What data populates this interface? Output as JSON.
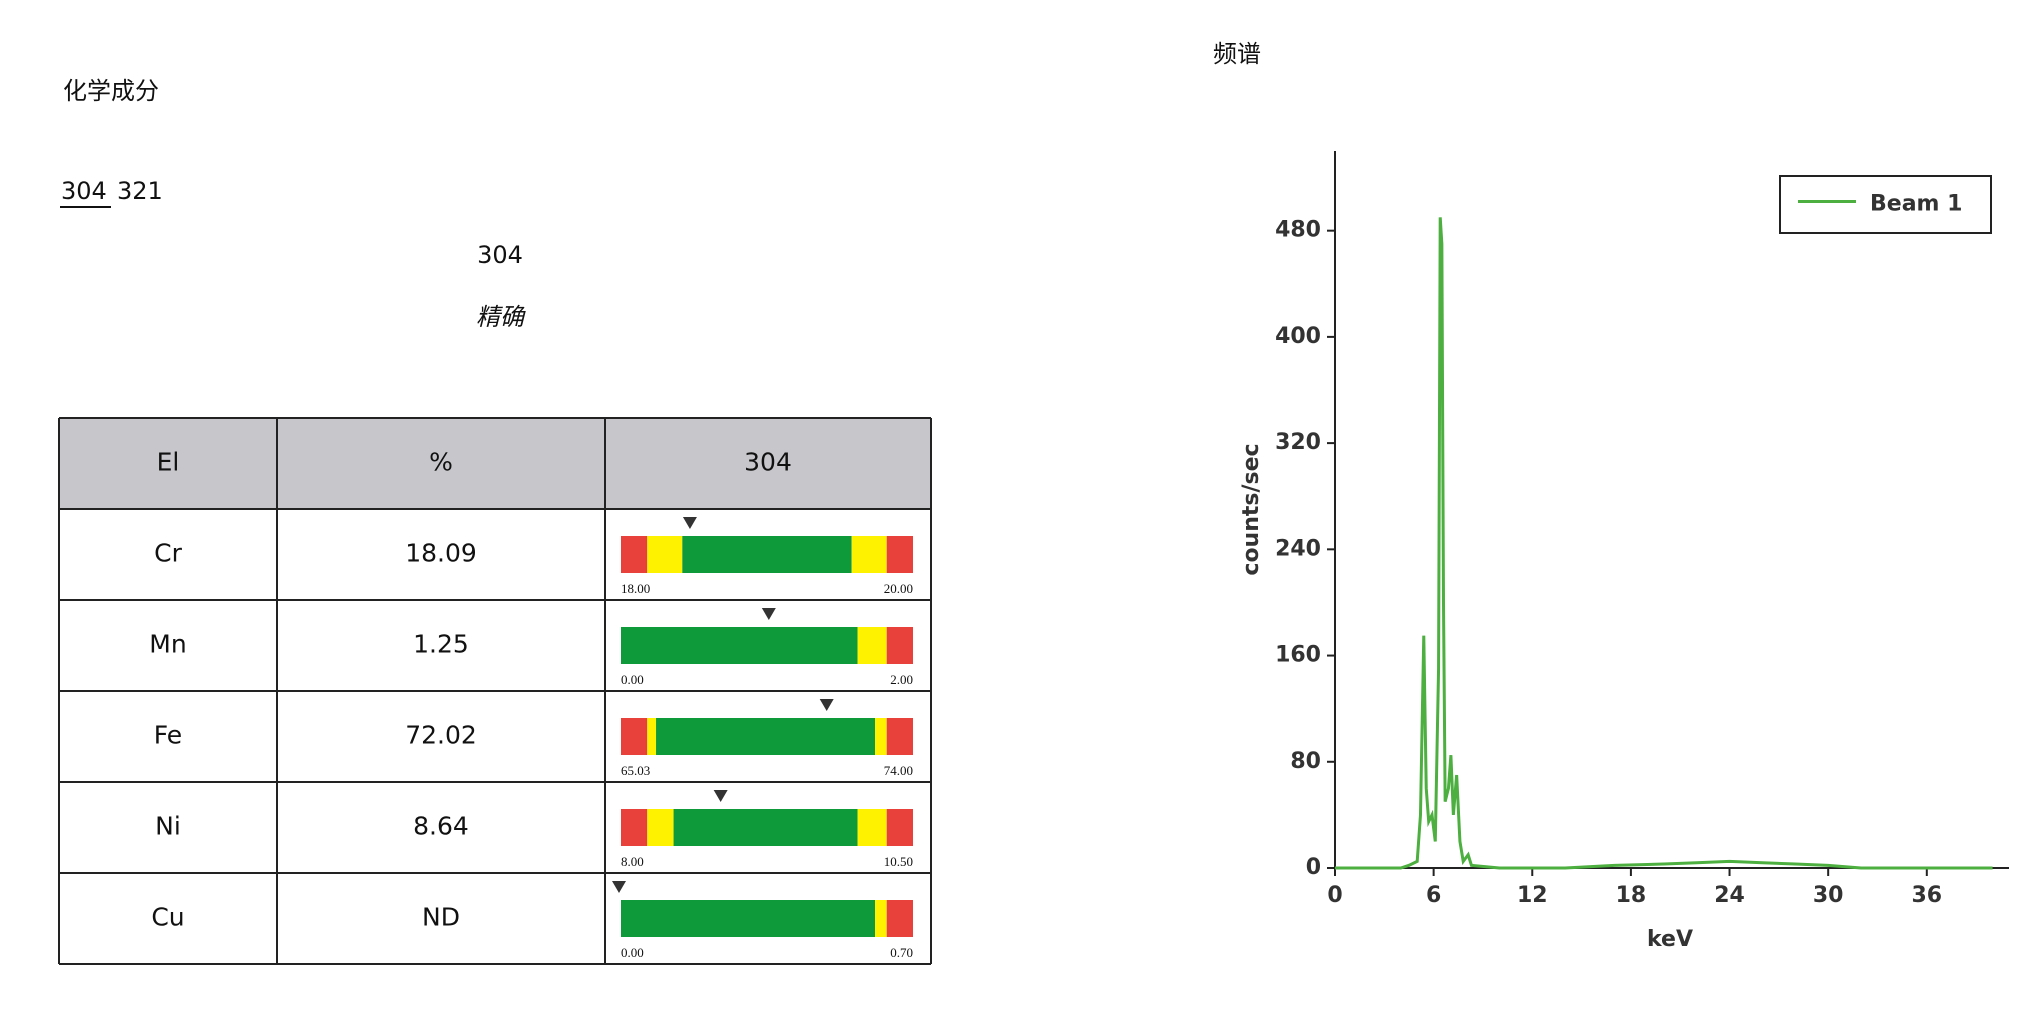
{
  "header": {
    "title": "化学成分",
    "grades": [
      "304",
      "321"
    ],
    "selected_grade": "304",
    "mode": "精确"
  },
  "table": {
    "columns": [
      "El",
      "%",
      "304"
    ],
    "rows": [
      {
        "element": "Cr",
        "percent": 18.09,
        "min": {
          "value": 18,
          "label": "18.00"
        },
        "max": {
          "value": 20,
          "label": "20.00"
        }
      },
      {
        "element": "Mn",
        "percent": 1.25,
        "min": {
          "value": 0,
          "label": "0.00"
        },
        "max": {
          "value": 2,
          "label": "2.00"
        }
      },
      {
        "element": "Fe",
        "percent": 72.02,
        "min": {
          "value": 65.03,
          "label": "65.03"
        },
        "max": {
          "value": 74,
          "label": "74.00"
        }
      },
      {
        "element": "Ni",
        "percent": 8.64,
        "min": {
          "value": 8,
          "label": "8.00"
        },
        "max": {
          "value": 10.5,
          "label": "10.50"
        }
      },
      {
        "element": "Cu",
        "percent": "ND",
        "min": {
          "value": 0,
          "label": "0.00"
        },
        "max": {
          "value": 0.7,
          "label": "0.70"
        }
      }
    ]
  },
  "chart_data": {
    "type": "line",
    "title": "频谱",
    "xlabel": "keV",
    "ylabel": "counts/sec",
    "x": [
      0,
      4,
      4.5,
      5,
      5.2,
      5.4,
      5.55,
      5.7,
      5.9,
      6.1,
      6.3,
      6.4,
      6.5,
      6.6,
      6.7,
      6.9,
      7.05,
      7.2,
      7.4,
      7.6,
      7.8,
      8.1,
      8.3,
      10,
      14,
      17,
      20,
      22,
      24,
      26,
      28,
      30,
      32,
      40
    ],
    "series": [
      {
        "name": "Beam 1",
        "color": "#4caf3f",
        "values": [
          0,
          0,
          2,
          5,
          40,
          175,
          60,
          35,
          40,
          20,
          150,
          490,
          470,
          200,
          50,
          60,
          85,
          40,
          70,
          20,
          5,
          10,
          2,
          0,
          0,
          2,
          3,
          4,
          5,
          4,
          3,
          2,
          0,
          0
        ]
      }
    ],
    "xlim": [
      0,
      41
    ],
    "ylim": [
      0,
      540
    ],
    "xticks": [
      0,
      6,
      12,
      18,
      24,
      30,
      36
    ],
    "yticks": [
      0,
      80,
      160,
      240,
      320,
      400,
      480
    ],
    "grid": false,
    "legend": "upper right"
  }
}
